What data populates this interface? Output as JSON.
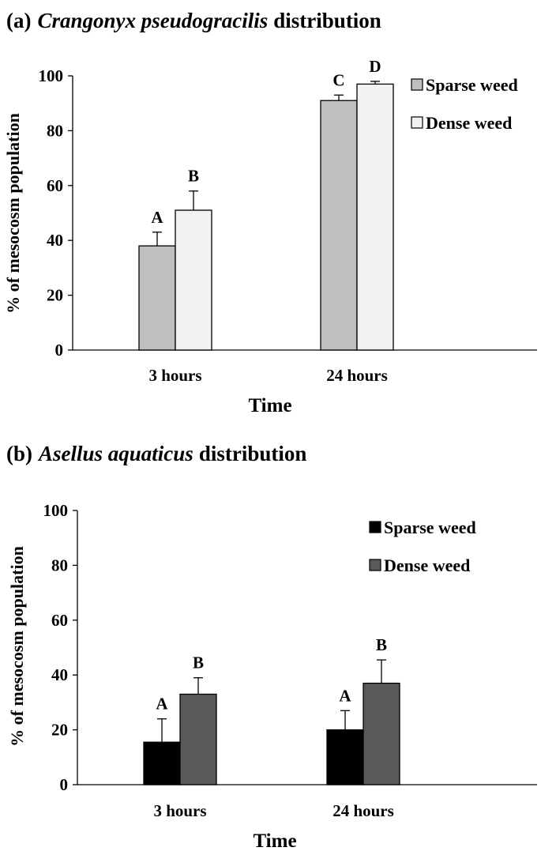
{
  "chart_data": [
    {
      "type": "bar",
      "panel_label": "(a)",
      "title_species": "Crangonyx pseudogracilis",
      "title_suffix": "distribution",
      "categories": [
        "3 hours",
        "24 hours"
      ],
      "series": [
        {
          "name": "Sparse weed",
          "values": [
            38,
            91
          ],
          "errors": [
            5,
            2
          ],
          "letters": [
            "A",
            "C"
          ],
          "color": "#bfbfbf"
        },
        {
          "name": "Dense weed",
          "values": [
            51,
            97
          ],
          "errors": [
            7,
            1
          ],
          "letters": [
            "B",
            "D"
          ],
          "color": "#f2f2f2"
        }
      ],
      "xlabel": "Time",
      "ylabel": "% of mesocosm population",
      "ylim": [
        0,
        100
      ],
      "yticks": [
        "0",
        "20",
        "40",
        "60",
        "80",
        "100"
      ],
      "grid": false,
      "legend_position": "top-right"
    },
    {
      "type": "bar",
      "panel_label": "(b)",
      "title_species": "Asellus aquaticus",
      "title_suffix": "distribution",
      "categories": [
        "3 hours",
        "24 hours"
      ],
      "series": [
        {
          "name": "Sparse weed",
          "values": [
            15.5,
            20
          ],
          "errors": [
            8.5,
            7
          ],
          "letters": [
            "A",
            "A"
          ],
          "color": "#000000"
        },
        {
          "name": "Dense weed",
          "values": [
            33,
            37
          ],
          "errors": [
            6,
            8.5
          ],
          "letters": [
            "B",
            "B"
          ],
          "color": "#595959"
        }
      ],
      "xlabel": "Time",
      "ylabel": "% of mesocosm population",
      "ylim": [
        0,
        100
      ],
      "yticks": [
        "0",
        "20",
        "40",
        "60",
        "80",
        "100"
      ],
      "grid": false,
      "legend_position": "top-right"
    }
  ]
}
